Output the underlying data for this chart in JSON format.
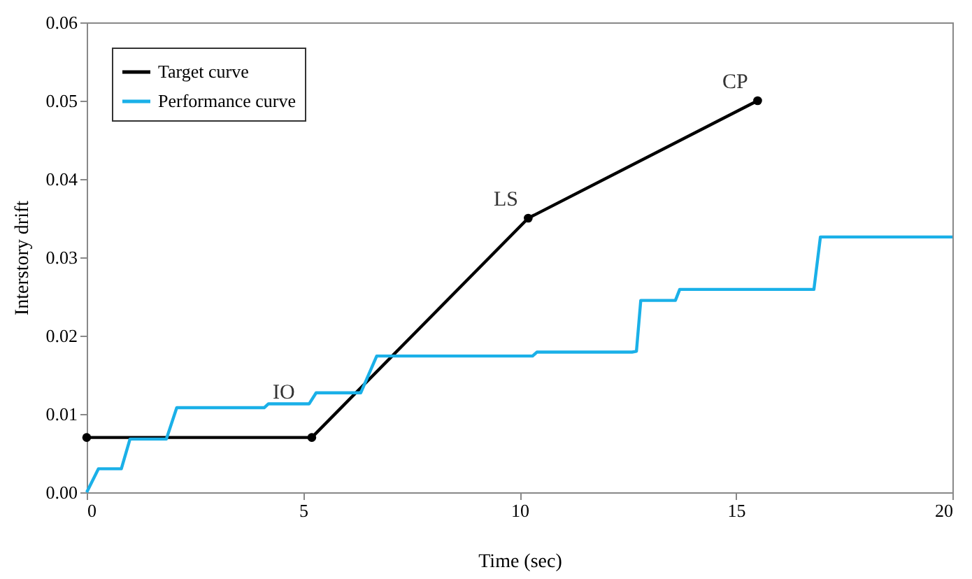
{
  "chart_data": {
    "type": "line",
    "xlabel": "Time (sec)",
    "ylabel": "Interstory drift",
    "series": [
      {
        "name": "Target curve",
        "color": "#000000",
        "marker": "circle",
        "x": [
          0,
          5.2,
          10.2,
          15.5
        ],
        "values": [
          0.007,
          0.007,
          0.035,
          0.05
        ]
      },
      {
        "name": "Performance curve",
        "color": "#1ab0e8",
        "marker": "none",
        "x": [
          0,
          0.27,
          0.8,
          1.0,
          1.84,
          2.08,
          4.1,
          4.2,
          5.14,
          5.3,
          6.33,
          6.7,
          10.3,
          10.4,
          12.6,
          12.7,
          12.8,
          13.6,
          13.7,
          16.8,
          16.95,
          20
        ],
        "values": [
          0,
          0.003,
          0.003,
          0.0068,
          0.0068,
          0.0108,
          0.0108,
          0.0113,
          0.0113,
          0.0127,
          0.0127,
          0.0174,
          0.0174,
          0.0179,
          0.0179,
          0.018,
          0.0245,
          0.0245,
          0.0259,
          0.0259,
          0.0326,
          0.0326
        ]
      }
    ],
    "annotations": [
      {
        "text": "IO",
        "x": 5.2,
        "y": 0.007
      },
      {
        "text": "LS",
        "x": 10.2,
        "y": 0.035
      },
      {
        "text": "CP",
        "x": 15.5,
        "y": 0.05
      }
    ],
    "xlim": [
      0,
      20
    ],
    "xticks": [
      0,
      5,
      10,
      15,
      20
    ],
    "ylim": [
      0,
      0.06
    ],
    "yticks": [
      {
        "value": 0,
        "label": "0.00"
      },
      {
        "value": 0.01,
        "label": "0.01"
      },
      {
        "value": 0.02,
        "label": "0.02"
      },
      {
        "value": 0.03,
        "label": "0.03"
      },
      {
        "value": 0.04,
        "label": "0.04"
      },
      {
        "value": 0.05,
        "label": "0.05"
      },
      {
        "value": 0.06,
        "label": "0.06"
      }
    ],
    "grid": false,
    "legend": "top left",
    "line_style": "solid"
  }
}
